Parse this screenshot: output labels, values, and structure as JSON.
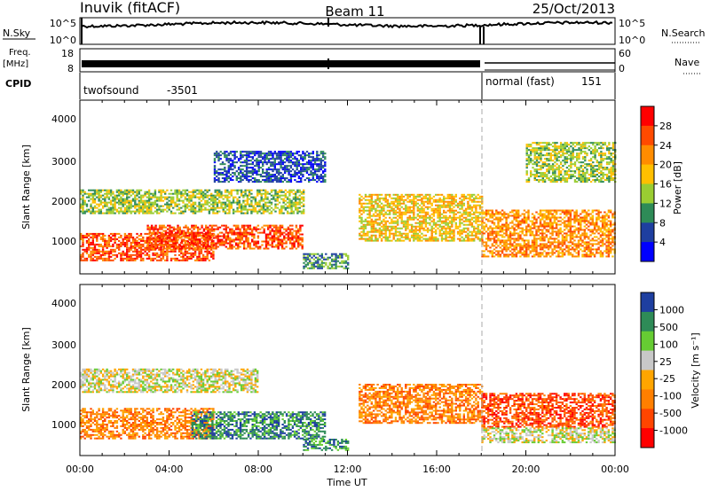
{
  "header": {
    "site": "Inuvik (fitACF)",
    "beam": "Beam 11",
    "date": "25/Oct/2013"
  },
  "top_panels": {
    "nsky_label": "N.Sky",
    "nsky_ticks": [
      "10^5",
      "10^0"
    ],
    "nsearch_label": "N.Search",
    "nsearch_ticks": [
      "10^5",
      "10^0"
    ],
    "freq_label": "Freq.",
    "freq_unit": "[MHz]",
    "freq_ticks": [
      "18",
      "8"
    ],
    "nave_label": "Nave",
    "nave_ticks": [
      "60",
      "0"
    ],
    "cpid_label": "CPID",
    "cpid_modes": [
      {
        "name": "twofsound",
        "id": "-3501",
        "start_hour": 0
      },
      {
        "name": "normal (fast)",
        "id": "151",
        "start_hour": 18
      }
    ]
  },
  "x_axis": {
    "label": "Time UT",
    "ticks": [
      "00:00",
      "04:00",
      "08:00",
      "12:00",
      "16:00",
      "20:00",
      "00:00"
    ],
    "range_hours": [
      0,
      24
    ]
  },
  "power_panel": {
    "ylabel": "Slant Range [km]",
    "yticks": [
      "4000",
      "3000",
      "2000",
      "1000"
    ],
    "colorbar_label": "Power [dB]",
    "colorbar_ticks": [
      "28",
      "24",
      "20",
      "16",
      "12",
      "8",
      "4"
    ],
    "colors": [
      "#ff0000",
      "#ff4a00",
      "#ff8c00",
      "#ffbf00",
      "#9acd32",
      "#2e8b57",
      "#1e3fa0",
      "#0000ff"
    ]
  },
  "velocity_panel": {
    "ylabel": "Slant Range [km]",
    "yticks": [
      "4000",
      "3000",
      "2000",
      "1000"
    ],
    "colorbar_label": "Velocity [m s⁻¹]",
    "colorbar_ticks": [
      "1000",
      "500",
      "100",
      "25",
      "-25",
      "-100",
      "-500",
      "-1000"
    ],
    "colors": [
      "#1e3fa0",
      "#2e8b57",
      "#66cc33",
      "#c8c8c8",
      "#ffa500",
      "#ff7f00",
      "#ff4500",
      "#ff0000"
    ]
  },
  "chart_data": [
    {
      "type": "heatmap",
      "title": "Power",
      "xlabel": "Time UT",
      "ylabel": "Slant Range [km]",
      "xlim": [
        0,
        24
      ],
      "ylim": [
        180,
        4600
      ],
      "colorbar": {
        "label": "Power [dB]",
        "range": [
          0,
          30
        ]
      },
      "bands": [
        {
          "t": [
            0,
            6
          ],
          "range_km": [
            500,
            1200
          ],
          "power_db": 28
        },
        {
          "t": [
            0,
            10
          ],
          "range_km": [
            1700,
            2300
          ],
          "power_db": 16
        },
        {
          "t": [
            3,
            10
          ],
          "range_km": [
            800,
            1400
          ],
          "power_db": 26
        },
        {
          "t": [
            6,
            11
          ],
          "range_km": [
            2500,
            3300
          ],
          "power_db": 8
        },
        {
          "t": [
            10,
            12
          ],
          "range_km": [
            300,
            700
          ],
          "power_db": 10
        },
        {
          "t": [
            12.5,
            18
          ],
          "range_km": [
            1000,
            2200
          ],
          "power_db": 20
        },
        {
          "t": [
            18,
            24
          ],
          "range_km": [
            600,
            1800
          ],
          "power_db": 24
        },
        {
          "t": [
            20,
            24
          ],
          "range_km": [
            2500,
            3500
          ],
          "power_db": 14
        }
      ]
    },
    {
      "type": "heatmap",
      "title": "Velocity",
      "xlabel": "Time UT",
      "ylabel": "Slant Range [km]",
      "xlim": [
        0,
        24
      ],
      "ylim": [
        180,
        4600
      ],
      "colorbar": {
        "label": "Velocity [m s-1]",
        "range": [
          -1000,
          1000
        ]
      },
      "bands": [
        {
          "t": [
            0,
            6
          ],
          "range_km": [
            600,
            1400
          ],
          "velocity": -100
        },
        {
          "t": [
            0,
            8
          ],
          "range_km": [
            1800,
            2400
          ],
          "velocity": 25
        },
        {
          "t": [
            5,
            11
          ],
          "range_km": [
            600,
            1300
          ],
          "velocity": 500
        },
        {
          "t": [
            10,
            12
          ],
          "range_km": [
            300,
            600
          ],
          "velocity": 500
        },
        {
          "t": [
            12.5,
            18
          ],
          "range_km": [
            1000,
            2000
          ],
          "velocity": -100
        },
        {
          "t": [
            18,
            24
          ],
          "range_km": [
            900,
            1800
          ],
          "velocity": -500
        },
        {
          "t": [
            18,
            24
          ],
          "range_km": [
            500,
            900
          ],
          "velocity": 25
        }
      ]
    }
  ]
}
